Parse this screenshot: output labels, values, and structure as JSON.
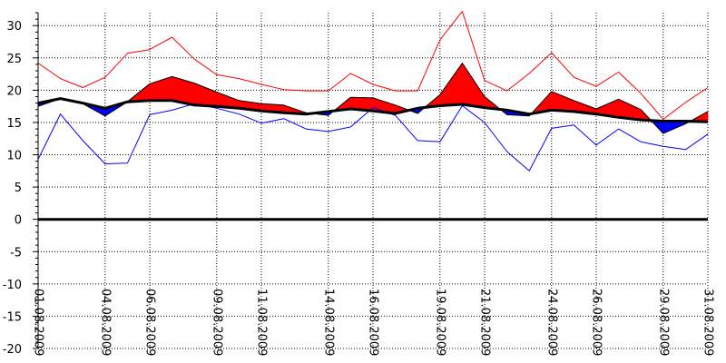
{
  "chart_data": {
    "type": "line",
    "ylim": [
      -20,
      32
    ],
    "yticks": [
      -20,
      -15,
      -10,
      -5,
      0,
      5,
      10,
      15,
      20,
      25,
      30
    ],
    "grid": true,
    "x": [
      "01.08.2009",
      "02.08.2009",
      "03.08.2009",
      "04.08.2009",
      "05.08.2009",
      "06.08.2009",
      "07.08.2009",
      "08.08.2009",
      "09.08.2009",
      "10.08.2009",
      "11.08.2009",
      "12.08.2009",
      "13.08.2009",
      "14.08.2009",
      "15.08.2009",
      "16.08.2009",
      "17.08.2009",
      "18.08.2009",
      "19.08.2009",
      "20.08.2009",
      "21.08.2009",
      "22.08.2009",
      "23.08.2009",
      "24.08.2009",
      "25.08.2009",
      "26.08.2009",
      "27.08.2009",
      "28.08.2009",
      "29.08.2009",
      "30.08.2009",
      "31.08.2009"
    ],
    "xtick_labels": [
      "01.08.2009",
      "04.08.2009",
      "06.08.2009",
      "09.08.2009",
      "11.08.2009",
      "14.08.2009",
      "16.08.2009",
      "19.08.2009",
      "21.08.2009",
      "24.08.2009",
      "26.08.2009",
      "29.08.2009",
      "31.08.2009"
    ],
    "series": [
      {
        "values": [
          24.2,
          21.8,
          20.4,
          22.0,
          25.7,
          26.3,
          28.2,
          24.8,
          22.4,
          21.8,
          20.9,
          20.1,
          19.9,
          19.9,
          22.6,
          20.9,
          19.9,
          19.9,
          27.8,
          32.2,
          21.5,
          19.9,
          22.6,
          25.8,
          22.0,
          20.6,
          22.8,
          19.5,
          15.5,
          18.1,
          20.4
        ],
        "color": "#ff0000"
      },
      {
        "values": [
          9.3,
          16.3,
          12.2,
          8.6,
          8.7,
          16.2,
          16.9,
          17.9,
          17.2,
          16.3,
          14.9,
          15.6,
          14.0,
          13.6,
          14.3,
          17.3,
          16.1,
          12.2,
          12.0,
          17.6,
          15.0,
          10.5,
          7.5,
          14.1,
          14.6,
          11.5,
          14.0,
          12.0,
          11.3,
          10.8,
          13.2
        ],
        "color": "#0000ff"
      },
      {
        "values": [
          17.5,
          18.7,
          17.9,
          16.0,
          18.2,
          21.0,
          22.1,
          21.1,
          19.7,
          18.4,
          17.9,
          17.7,
          16.5,
          16.1,
          18.9,
          18.8,
          17.7,
          16.4,
          19.3,
          24.2,
          19.0,
          16.2,
          16.0,
          19.8,
          18.4,
          17.1,
          18.6,
          17.0,
          13.3,
          14.8,
          16.7
        ],
        "color": "#000000"
      },
      {
        "values": [
          18.0,
          18.7,
          18.0,
          17.2,
          18.2,
          18.4,
          18.4,
          17.7,
          17.5,
          17.2,
          16.8,
          16.5,
          16.3,
          16.7,
          17.1,
          16.8,
          16.4,
          17.2,
          17.6,
          17.8,
          17.3,
          16.9,
          16.3,
          16.9,
          16.7,
          16.3,
          15.8,
          15.4,
          15.2,
          15.2,
          15.1
        ],
        "color": "#000000"
      }
    ]
  }
}
